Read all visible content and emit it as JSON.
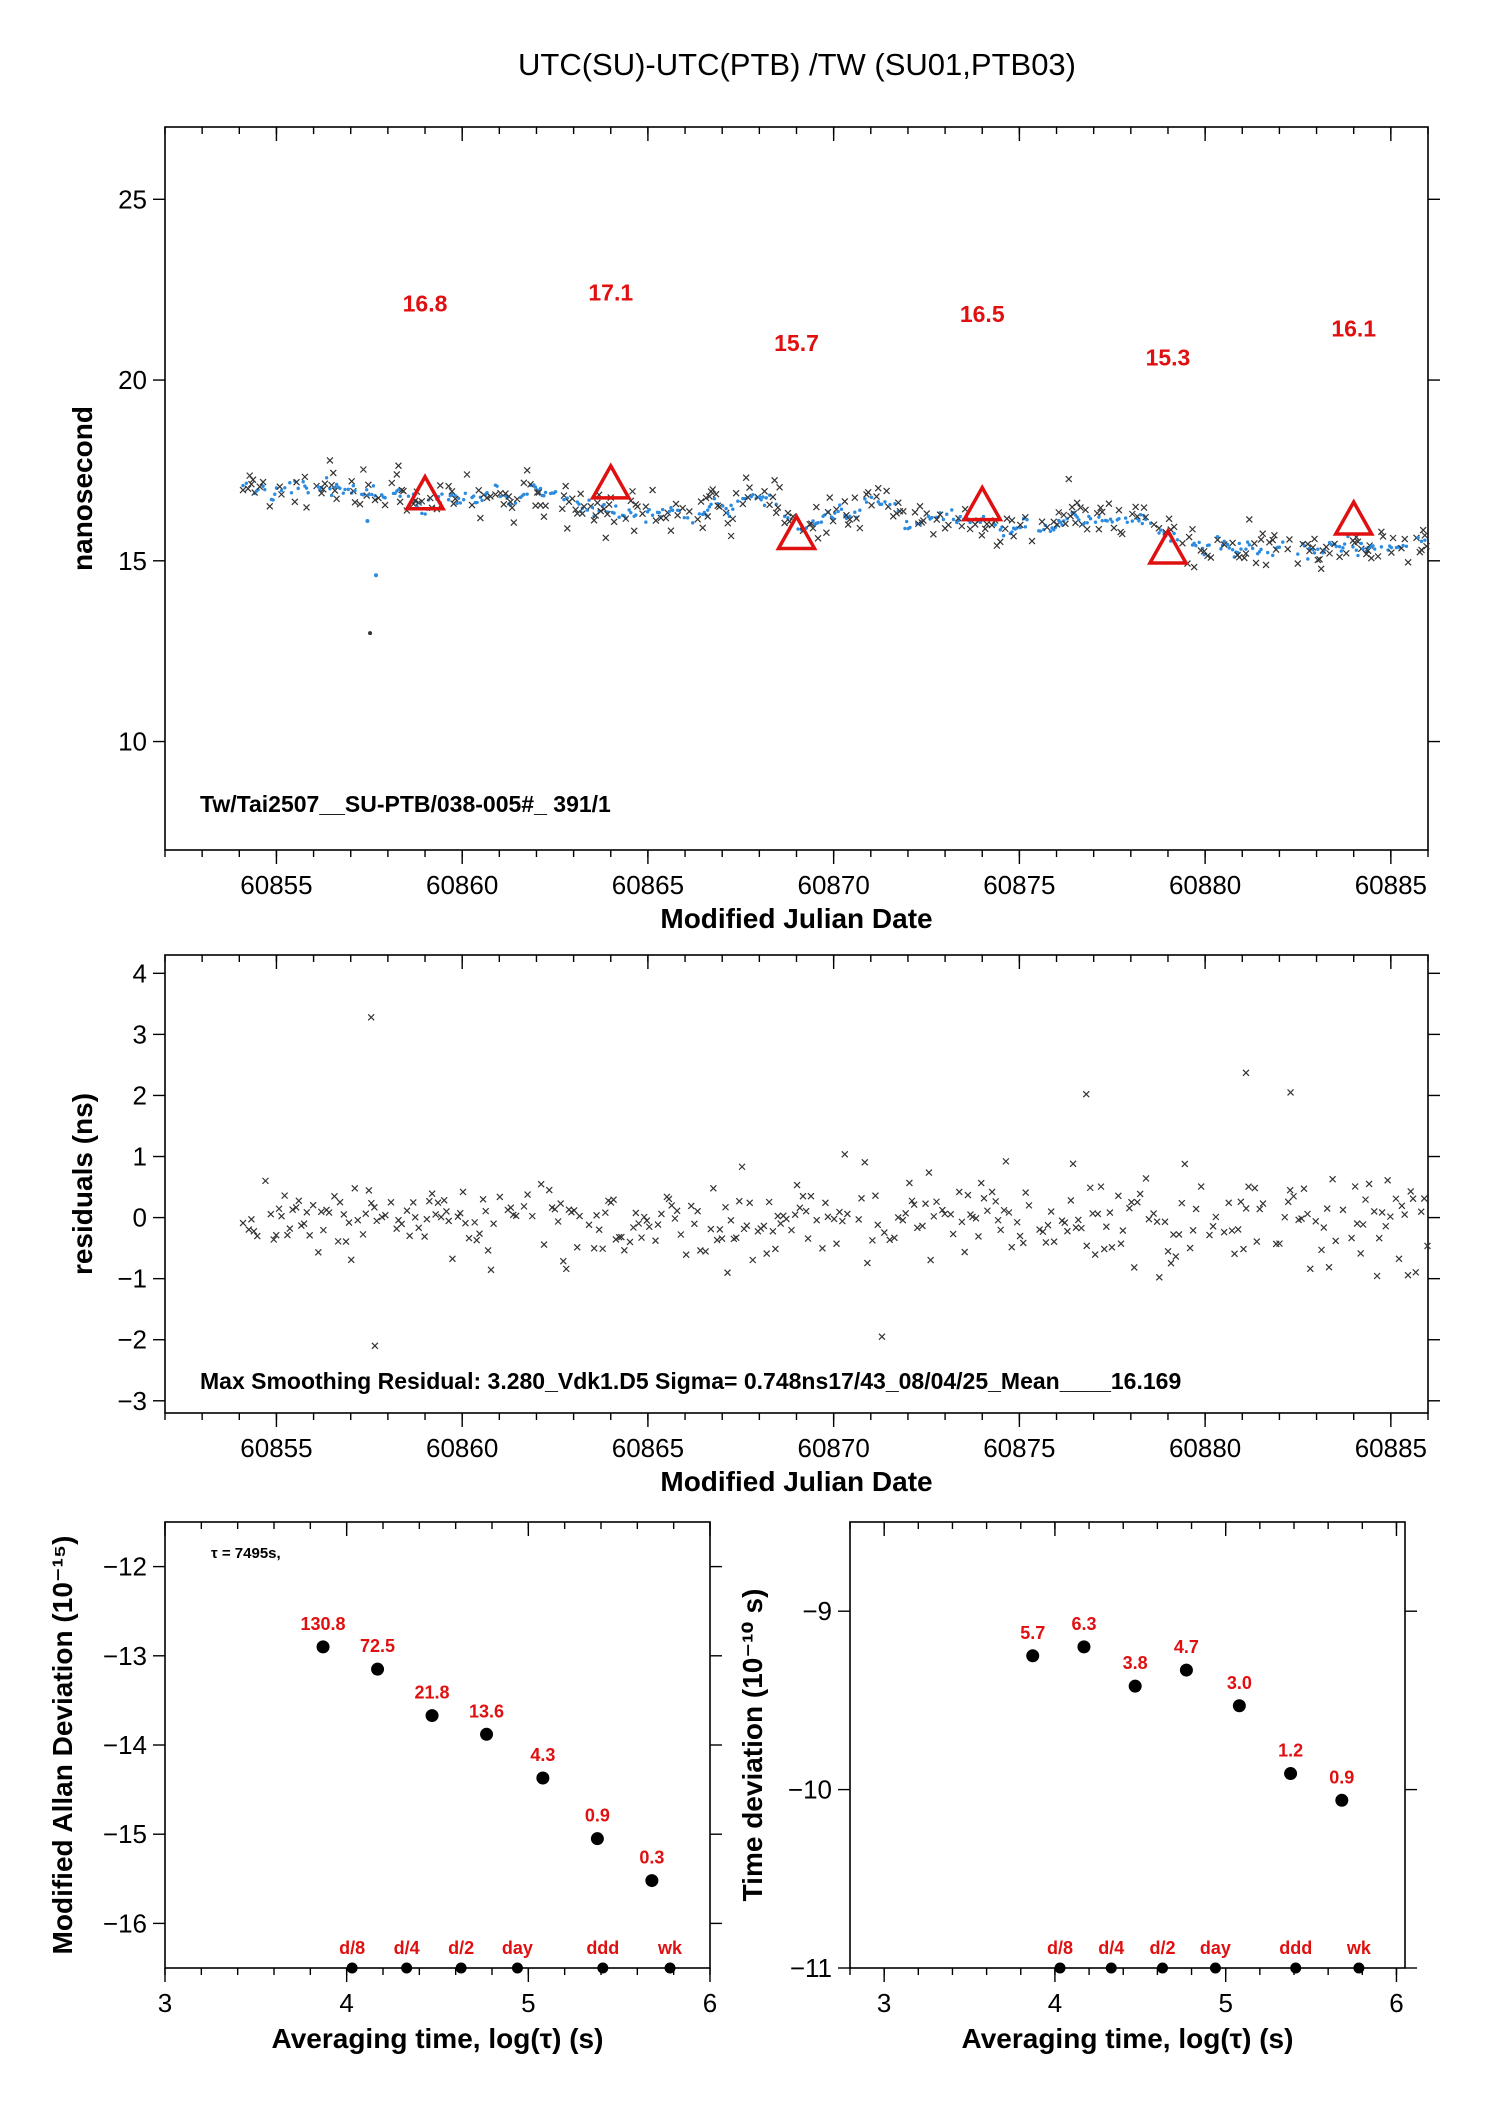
{
  "figure": {
    "title": "UTC(SU)-UTC(PTB)  /TW  (SU01,PTB03)"
  },
  "colors": {
    "dots": "#2b8be0",
    "crosses": "#333333",
    "accent": "#e01010",
    "axis": "#000000"
  },
  "chart_data": [
    {
      "type": "scatter",
      "ylabel": "nanosecond",
      "xlabel": "Modified Julian Date",
      "xlim": [
        60852,
        60886
      ],
      "ylim": [
        7,
        27
      ],
      "xticks": [
        60855,
        60860,
        60865,
        60870,
        60875,
        60880,
        60885
      ],
      "yticks": [
        10,
        15,
        20,
        25
      ],
      "annotation": "Tw/Tai2507__SU-PTB/038-005#_  391/1",
      "x_range_data": [
        60854.1,
        60886
      ],
      "outlier_points": [
        {
          "x": 60857.52,
          "y": 13.0
        },
        {
          "x": 60857.68,
          "y": 14.6
        },
        {
          "x": 60857.45,
          "y": 16.1
        }
      ],
      "series": [
        {
          "name": "",
          "marker": "dot",
          "trend": [
            [
              60854,
              17.0
            ],
            [
              60857,
              16.8
            ],
            [
              60859,
              16.6
            ],
            [
              60861,
              16.9
            ],
            [
              60863,
              16.6
            ],
            [
              60864,
              16.5
            ],
            [
              60866,
              16.2
            ],
            [
              60868,
              16.7
            ],
            [
              60869,
              16.1
            ],
            [
              60871,
              16.5
            ],
            [
              60873,
              16.2
            ],
            [
              60875,
              16.0
            ],
            [
              60877,
              16.3
            ],
            [
              60879,
              15.7
            ],
            [
              60881,
              15.5
            ],
            [
              60883,
              15.3
            ],
            [
              60886,
              15.4
            ]
          ]
        },
        {
          "name": "",
          "marker": "cross"
        },
        {
          "name": "",
          "marker": "triangle",
          "x": [
            60859,
            60864,
            60869,
            60874,
            60879,
            60884
          ],
          "values": [
            16.8,
            17.1,
            15.7,
            16.5,
            15.3,
            16.1
          ],
          "labels": [
            "16.8",
            "17.1",
            "15.7",
            "16.5",
            "15.3",
            "16.1"
          ]
        }
      ]
    },
    {
      "type": "scatter",
      "ylabel": "residuals (ns)",
      "xlabel": "Modified Julian Date",
      "xlim": [
        60852,
        60886
      ],
      "ylim": [
        -3.2,
        4.3
      ],
      "xticks": [
        60855,
        60860,
        60865,
        60870,
        60875,
        60880,
        60885
      ],
      "yticks": [
        -3,
        -2,
        -1,
        0,
        1,
        2,
        3,
        4
      ],
      "annotation": "Max Smoothing Residual: 3.280_Vdk1.D5  Sigma= 0.748ns17/43_08/04/25_Mean____16.169",
      "extreme_points": [
        {
          "x": 60857.55,
          "y": 3.28
        },
        {
          "x": 60857.65,
          "y": -2.1
        },
        {
          "x": 60881.1,
          "y": 2.37
        },
        {
          "x": 60882.3,
          "y": 2.05
        },
        {
          "x": 60876.8,
          "y": 2.02
        },
        {
          "x": 60871.3,
          "y": -1.95
        }
      ]
    },
    {
      "type": "scatter",
      "ylabel": "Modified Allan Deviation (10⁻¹⁵)",
      "xlabel": "Averaging time, log(τ) (s)",
      "xlim": [
        3,
        6
      ],
      "ylim": [
        -16.5,
        -11.5
      ],
      "xticks": [
        3,
        4,
        5,
        6
      ],
      "yticks": [
        -16,
        -15,
        -14,
        -13,
        -12
      ],
      "tau_note": "τ = 7495s,",
      "x": [
        3.87,
        4.17,
        4.47,
        4.77,
        5.08,
        5.38,
        5.68
      ],
      "values": [
        -12.9,
        -13.15,
        -13.67,
        -13.88,
        -14.37,
        -15.05,
        -15.52
      ],
      "labels": [
        "130.8",
        "72.5",
        "21.8",
        "13.6",
        "4.3",
        "0.9",
        "0.3"
      ],
      "markers": [
        {
          "label": "d/8",
          "x": 4.03
        },
        {
          "label": "d/4",
          "x": 4.33
        },
        {
          "label": "d/2",
          "x": 4.63
        },
        {
          "label": "day",
          "x": 4.94
        },
        {
          "label": "ddd",
          "x": 5.41
        },
        {
          "label": "wk",
          "x": 5.78
        }
      ]
    },
    {
      "type": "scatter",
      "ylabel": "Time deviation (10⁻¹⁰ s)",
      "xlabel": "Averaging time, log(τ) (s)",
      "xlim": [
        2.8,
        6.05
      ],
      "ylim": [
        -11,
        -8.5
      ],
      "xticks": [
        3,
        4,
        5,
        6
      ],
      "yticks": [
        -11,
        -10,
        -9
      ],
      "x": [
        3.87,
        4.17,
        4.47,
        4.77,
        5.08,
        5.38,
        5.68
      ],
      "values": [
        -9.25,
        -9.2,
        -9.42,
        -9.33,
        -9.53,
        -9.91,
        -10.06
      ],
      "labels": [
        "5.7",
        "6.3",
        "3.8",
        "4.7",
        "3.0",
        "1.2",
        "0.9"
      ],
      "markers": [
        {
          "label": "d/8",
          "x": 4.03
        },
        {
          "label": "d/4",
          "x": 4.33
        },
        {
          "label": "d/2",
          "x": 4.63
        },
        {
          "label": "day",
          "x": 4.94
        },
        {
          "label": "ddd",
          "x": 5.41
        },
        {
          "label": "wk",
          "x": 5.78
        }
      ]
    }
  ]
}
